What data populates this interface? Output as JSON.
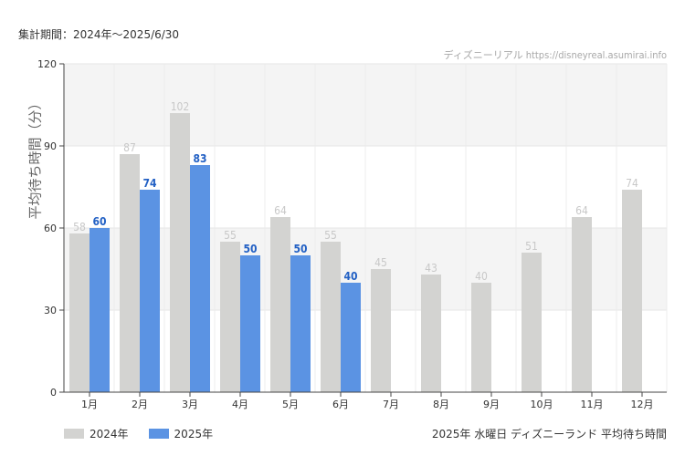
{
  "header": {
    "period": "集計期間：2024年～2025/6/30"
  },
  "watermark": "ディズニーリアル https://disneyreal.asumirai.info",
  "caption": "2025年 水曜日 ディズニーランド 平均待ち時間",
  "chart_data": {
    "type": "bar",
    "ylabel": "平均待ち時間（分）",
    "xlabel": "",
    "ylim": [
      0,
      120
    ],
    "yticks": [
      0,
      30,
      60,
      90,
      120
    ],
    "grid": true,
    "legend_position": "bottom-left",
    "categories": [
      "1月",
      "2月",
      "3月",
      "4月",
      "5月",
      "6月",
      "7月",
      "8月",
      "9月",
      "10月",
      "11月",
      "12月"
    ],
    "series": [
      {
        "name": "2024年",
        "color": "#d3d3d1",
        "label_color": "#c8c8c8",
        "values": [
          58,
          87,
          102,
          55,
          64,
          55,
          45,
          43,
          40,
          51,
          64,
          74
        ]
      },
      {
        "name": "2025年",
        "color": "#5b93e3",
        "label_color": "#2260c4",
        "values": [
          60,
          74,
          83,
          50,
          50,
          40,
          null,
          null,
          null,
          null,
          null,
          null
        ]
      }
    ]
  }
}
